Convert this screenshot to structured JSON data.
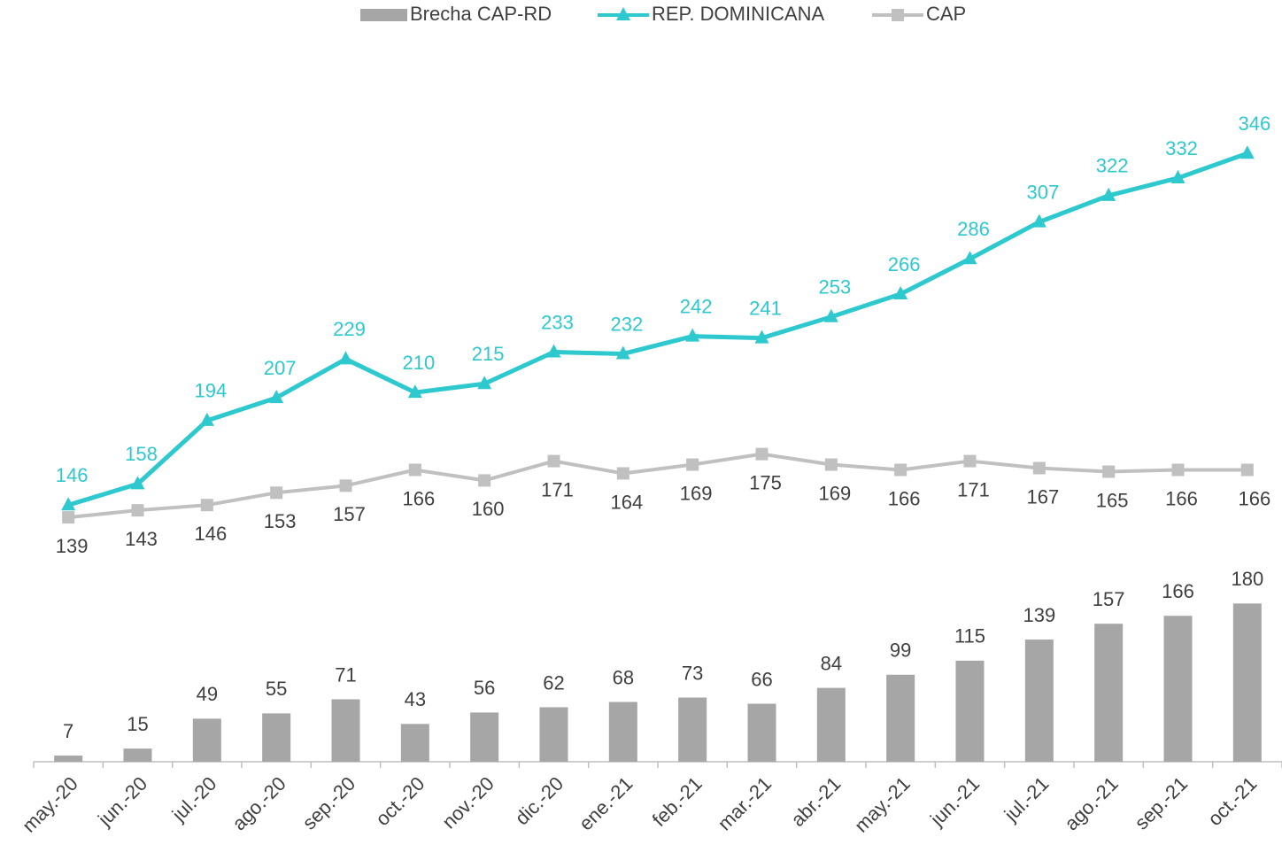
{
  "chart_data": {
    "type": "bar_line",
    "categories": [
      "may.-20",
      "jun.-20",
      "jul.-20",
      "ago.-20",
      "sep.-20",
      "oct.-20",
      "nov.-20",
      "dic.-20",
      "ene.-21",
      "feb.-21",
      "mar.-21",
      "abr.-21",
      "may.-21",
      "jun.-21",
      "jul.-21",
      "ago.-21",
      "sep.-21",
      "oct.-21"
    ],
    "series": [
      {
        "name": "Brecha CAP-RD",
        "type": "bar",
        "color": "#a6a6a6",
        "values": [
          7,
          15,
          49,
          55,
          71,
          43,
          56,
          62,
          68,
          73,
          66,
          84,
          99,
          115,
          139,
          157,
          166,
          180
        ]
      },
      {
        "name": "REP. DOMINICANA",
        "type": "line",
        "axis": "y2",
        "marker": "triangle",
        "color": "#2ec8cf",
        "label_color": "#2ec8cf",
        "values": [
          146,
          158,
          194,
          207,
          229,
          210,
          215,
          233,
          232,
          242,
          241,
          253,
          266,
          286,
          307,
          322,
          332,
          346
        ]
      },
      {
        "name": "CAP",
        "type": "line",
        "axis": "y2",
        "marker": "square",
        "color": "#c0c0c0",
        "label_color": "#404040",
        "values": [
          139,
          143,
          146,
          153,
          157,
          166,
          160,
          171,
          164,
          169,
          175,
          169,
          166,
          171,
          167,
          165,
          166,
          166
        ]
      }
    ],
    "ylim": [
      0,
      800
    ],
    "y2lim": [
      0,
      400
    ],
    "grid": false,
    "legend": "top"
  }
}
